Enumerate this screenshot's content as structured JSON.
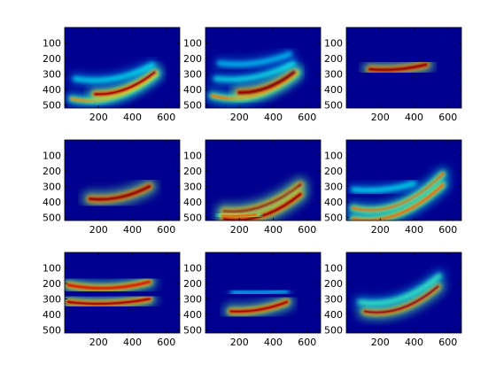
{
  "figure": {
    "background": "#ffffff",
    "colormap": "jet",
    "colormap_low": "#00008f"
  },
  "chart_data": [
    {
      "type": "heatmap",
      "panel": "r1c1",
      "x_ticks": [
        "200",
        "400",
        "600"
      ],
      "y_ticks": [
        "100",
        "200",
        "300",
        "400",
        "500"
      ],
      "xlim": [
        0,
        680
      ],
      "ylim": [
        0,
        520
      ],
      "features": [
        {
          "kind": "band",
          "x0": 40,
          "x1": 540,
          "y0": 460,
          "ym": 450,
          "y1": 300,
          "intensity": 0.45
        },
        {
          "kind": "band",
          "x0": 180,
          "x1": 530,
          "y0": 430,
          "ym": 400,
          "y1": 290,
          "intensity": 0.85
        },
        {
          "kind": "band",
          "x0": 60,
          "x1": 520,
          "y0": 330,
          "ym": 330,
          "y1": 240,
          "intensity": 0.18
        }
      ]
    },
    {
      "type": "heatmap",
      "panel": "r1c2",
      "x_ticks": [
        "200",
        "400",
        "600"
      ],
      "y_ticks": [
        "100",
        "200",
        "300",
        "400",
        "500"
      ],
      "xlim": [
        0,
        680
      ],
      "ylim": [
        0,
        520
      ],
      "features": [
        {
          "kind": "band",
          "x0": 40,
          "x1": 540,
          "y0": 440,
          "ym": 440,
          "y1": 290,
          "intensity": 0.5
        },
        {
          "kind": "band",
          "x0": 200,
          "x1": 520,
          "y0": 420,
          "ym": 390,
          "y1": 290,
          "intensity": 1.0
        },
        {
          "kind": "band",
          "x0": 60,
          "x1": 520,
          "y0": 330,
          "ym": 320,
          "y1": 230,
          "intensity": 0.2
        },
        {
          "kind": "band",
          "x0": 80,
          "x1": 500,
          "y0": 230,
          "ym": 230,
          "y1": 170,
          "intensity": 0.12
        }
      ]
    },
    {
      "type": "heatmap",
      "panel": "r1c3",
      "x_ticks": [
        "200",
        "400",
        "600"
      ],
      "y_ticks": [
        "100",
        "200",
        "300",
        "400",
        "500"
      ],
      "xlim": [
        0,
        680
      ],
      "ylim": [
        0,
        520
      ],
      "features": [
        {
          "kind": "band",
          "x0": 140,
          "x1": 470,
          "y0": 270,
          "ym": 270,
          "y1": 240,
          "intensity": 0.95
        }
      ]
    },
    {
      "type": "heatmap",
      "panel": "r2c1",
      "x_ticks": [
        "200",
        "400",
        "600"
      ],
      "y_ticks": [
        "100",
        "200",
        "300",
        "400",
        "500"
      ],
      "xlim": [
        0,
        680
      ],
      "ylim": [
        0,
        520
      ],
      "features": [
        {
          "kind": "band",
          "x0": 150,
          "x1": 500,
          "y0": 380,
          "ym": 370,
          "y1": 300,
          "intensity": 0.95
        }
      ]
    },
    {
      "type": "heatmap",
      "panel": "r2c2",
      "x_ticks": [
        "200",
        "400",
        "600"
      ],
      "y_ticks": [
        "100",
        "200",
        "300",
        "400",
        "500"
      ],
      "xlim": [
        0,
        680
      ],
      "ylim": [
        0,
        520
      ],
      "features": [
        {
          "kind": "band",
          "x0": 110,
          "x1": 560,
          "y0": 460,
          "ym": 430,
          "y1": 290,
          "intensity": 0.9
        },
        {
          "kind": "band",
          "x0": 110,
          "x1": 560,
          "y0": 510,
          "ym": 490,
          "y1": 350,
          "intensity": 0.9
        },
        {
          "kind": "band",
          "x0": 100,
          "x1": 300,
          "y0": 490,
          "ym": 490,
          "y1": 480,
          "intensity": 0.6
        }
      ]
    },
    {
      "type": "heatmap",
      "panel": "r2c3",
      "x_ticks": [
        "200",
        "400",
        "600"
      ],
      "y_ticks": [
        "100",
        "200",
        "300",
        "400",
        "500"
      ],
      "xlim": [
        0,
        680
      ],
      "ylim": [
        0,
        520
      ],
      "features": [
        {
          "kind": "band",
          "x0": 40,
          "x1": 570,
          "y0": 440,
          "ym": 420,
          "y1": 220,
          "intensity": 0.55
        },
        {
          "kind": "band",
          "x0": 40,
          "x1": 570,
          "y0": 510,
          "ym": 480,
          "y1": 290,
          "intensity": 0.55
        },
        {
          "kind": "band",
          "x0": 40,
          "x1": 400,
          "y0": 320,
          "ym": 320,
          "y1": 280,
          "intensity": 0.18
        }
      ]
    },
    {
      "type": "heatmap",
      "panel": "r3c1",
      "x_ticks": [
        "200",
        "400",
        "600"
      ],
      "y_ticks": [
        "100",
        "200",
        "300",
        "400",
        "500"
      ],
      "xlim": [
        0,
        680
      ],
      "ylim": [
        0,
        520
      ],
      "features": [
        {
          "kind": "band",
          "x0": 20,
          "x1": 500,
          "y0": 210,
          "ym": 230,
          "y1": 190,
          "intensity": 0.8
        },
        {
          "kind": "band",
          "x0": 20,
          "x1": 500,
          "y0": 320,
          "ym": 330,
          "y1": 300,
          "intensity": 0.85
        }
      ]
    },
    {
      "type": "heatmap",
      "panel": "r3c2",
      "x_ticks": [
        "200",
        "400",
        "600"
      ],
      "y_ticks": [
        "100",
        "200",
        "300",
        "400",
        "500"
      ],
      "xlim": [
        0,
        680
      ],
      "ylim": [
        0,
        520
      ],
      "features": [
        {
          "kind": "band",
          "x0": 150,
          "x1": 480,
          "y0": 380,
          "ym": 370,
          "y1": 320,
          "intensity": 0.85
        },
        {
          "kind": "band",
          "x0": 160,
          "x1": 480,
          "y0": 260,
          "ym": 260,
          "y1": 250,
          "intensity": 0.08
        }
      ]
    },
    {
      "type": "heatmap",
      "panel": "r3c3",
      "x_ticks": [
        "200",
        "400",
        "600"
      ],
      "y_ticks": [
        "100",
        "200",
        "300",
        "400",
        "500"
      ],
      "xlim": [
        0,
        680
      ],
      "ylim": [
        0,
        520
      ],
      "features": [
        {
          "kind": "band",
          "x0": 110,
          "x1": 540,
          "y0": 380,
          "ym": 360,
          "y1": 220,
          "intensity": 0.85
        },
        {
          "kind": "band",
          "x0": 80,
          "x1": 550,
          "y0": 320,
          "ym": 300,
          "y1": 150,
          "intensity": 0.3
        }
      ]
    }
  ]
}
